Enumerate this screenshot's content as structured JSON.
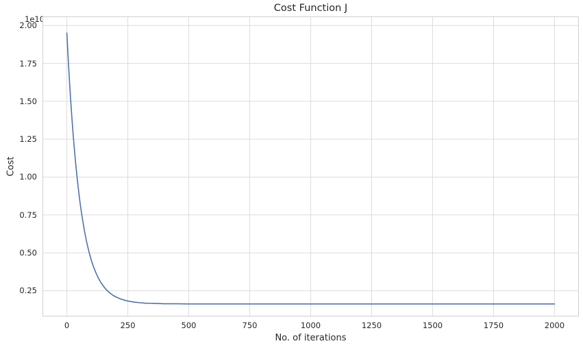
{
  "chart_data": {
    "type": "line",
    "title": "Cost Function J",
    "xlabel": "No. of iterations",
    "ylabel": "Cost",
    "y_offset_label": "1e10",
    "x_ticks": [
      0,
      250,
      500,
      750,
      1000,
      1250,
      1500,
      1750,
      2000
    ],
    "x_tick_labels": [
      "0",
      "250",
      "500",
      "750",
      "1000",
      "1250",
      "1500",
      "1750",
      "2000"
    ],
    "y_ticks": [
      0.25,
      0.5,
      0.75,
      1.0,
      1.25,
      1.5,
      1.75,
      2.0
    ],
    "y_tick_labels": [
      "0.25",
      "0.50",
      "0.75",
      "1.00",
      "1.25",
      "1.50",
      "1.75",
      "2.00"
    ],
    "xlim": [
      -100,
      2100
    ],
    "ylim": [
      0.08,
      2.06
    ],
    "y_scale_factor": 10000000000.0,
    "grid": true,
    "grid_color": "#dcdcdc",
    "spine_color": "#d0d0d0",
    "line_color": "#4c72b0",
    "line_width": 1.6,
    "series": [
      {
        "name": "Cost",
        "x": [
          0,
          5,
          10,
          15,
          20,
          25,
          30,
          35,
          40,
          45,
          50,
          55,
          60,
          70,
          80,
          90,
          100,
          110,
          120,
          130,
          140,
          150,
          160,
          170,
          180,
          190,
          200,
          220,
          240,
          260,
          280,
          300,
          320,
          340,
          360,
          380,
          400,
          450,
          500,
          600,
          700,
          800,
          900,
          1000,
          1100,
          1200,
          1300,
          1400,
          1500,
          1600,
          1700,
          1800,
          1900,
          2000
        ],
        "y": [
          1.95,
          1.795,
          1.653,
          1.524,
          1.406,
          1.297,
          1.199,
          1.109,
          1.027,
          0.952,
          0.884,
          0.82,
          0.764,
          0.664,
          0.58,
          0.511,
          0.453,
          0.405,
          0.365,
          0.331,
          0.303,
          0.28,
          0.26,
          0.244,
          0.231,
          0.219,
          0.21,
          0.196,
          0.186,
          0.179,
          0.174,
          0.171,
          0.168,
          0.167,
          0.166,
          0.165,
          0.164,
          0.164,
          0.163,
          0.163,
          0.163,
          0.163,
          0.163,
          0.163,
          0.163,
          0.163,
          0.163,
          0.163,
          0.163,
          0.163,
          0.163,
          0.163,
          0.163,
          0.163
        ]
      }
    ]
  }
}
